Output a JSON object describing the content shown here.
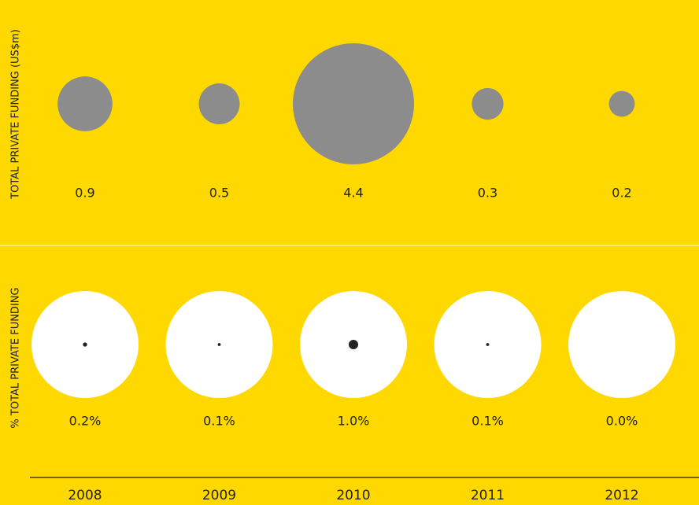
{
  "chart_data": [
    {
      "type": "bubble",
      "ylabel": "TOTAL PRIVATE FUNDING (US$m)",
      "values": [
        0.9,
        0.5,
        4.4,
        0.3,
        0.2
      ],
      "color": "#8c8c8c"
    },
    {
      "type": "dot",
      "ylabel": "% TOTAL PRIVATE FUNDING",
      "categories": [
        "2008",
        "2009",
        "2010",
        "2011",
        "2012"
      ],
      "values": [
        0.2,
        0.1,
        1.0,
        0.1,
        0.0
      ],
      "value_labels": [
        "0.2%",
        "0.1%",
        "1.0%",
        "0.1%",
        "0.0%"
      ],
      "color": "#222222"
    }
  ]
}
